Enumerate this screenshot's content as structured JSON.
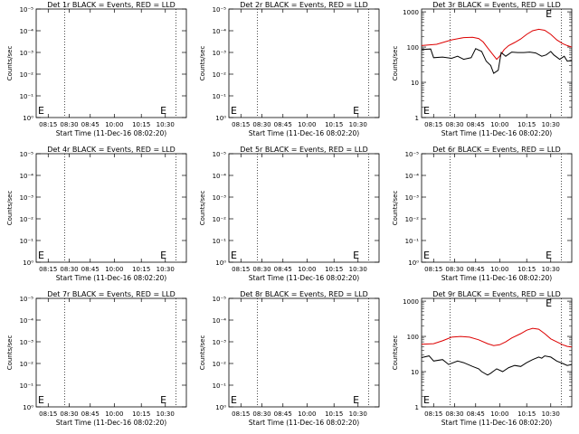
{
  "colors": {
    "events": "#000000",
    "lld": "#dd0000",
    "axis": "#000000"
  },
  "chart_data": [
    {
      "type": "line",
      "title": "Det 1r BLACK = Events, RED = LLD",
      "xlabel": "Start Time (11-Dec-16 08:02:20)",
      "ylabel": "Counts/sec",
      "xticks": [
        "08:15",
        "08:30",
        "08:45",
        "10:00",
        "10:15",
        "10:30"
      ],
      "yticks": [
        "10⁰",
        "10⁻¹",
        "10⁻²",
        "10⁻³",
        "10⁻⁴",
        "10⁻⁵"
      ],
      "grid": false,
      "markers": [
        "E"
      ],
      "series": []
    },
    {
      "type": "line",
      "title": "Det 2r BLACK = Events, RED = LLD",
      "xlabel": "Start Time (11-Dec-16 08:02:20)",
      "ylabel": "Counts/sec",
      "xticks": [
        "08:15",
        "08:30",
        "08:45",
        "10:00",
        "10:15",
        "10:30"
      ],
      "yticks": [
        "10⁰",
        "10⁻¹",
        "10⁻²",
        "10⁻³",
        "10⁻⁴",
        "10⁻⁵"
      ],
      "grid": false,
      "markers": [
        "E"
      ],
      "series": []
    },
    {
      "type": "line",
      "title": "Det 3r BLACK = Events, RED = LLD",
      "xlabel": "Start Time (11-Dec-16 08:02:20)",
      "ylabel": "Counts/sec",
      "xticks": [
        "08:15",
        "08:30",
        "08:45",
        "10:00",
        "10:15",
        "10:30"
      ],
      "yticks": [
        "1",
        "10",
        "100",
        "1000"
      ],
      "ylim": [
        1,
        1200
      ],
      "yscale": "log",
      "grid": false,
      "markers": [
        "E"
      ],
      "series": [
        {
          "color": "#dd0000",
          "points": [
            [
              0.0,
              110
            ],
            [
              0.1,
              120
            ],
            [
              0.2,
              160
            ],
            [
              0.28,
              185
            ],
            [
              0.34,
              190
            ],
            [
              0.38,
              175
            ],
            [
              0.41,
              140
            ],
            [
              0.44,
              95
            ],
            [
              0.47,
              65
            ],
            [
              0.5,
              45
            ],
            [
              0.52,
              55
            ],
            [
              0.55,
              85
            ],
            [
              0.58,
              110
            ],
            [
              0.62,
              135
            ],
            [
              0.66,
              170
            ],
            [
              0.7,
              230
            ],
            [
              0.74,
              290
            ],
            [
              0.78,
              320
            ],
            [
              0.82,
              300
            ],
            [
              0.86,
              230
            ],
            [
              0.9,
              160
            ],
            [
              0.94,
              125
            ],
            [
              0.97,
              110
            ],
            [
              1.0,
              100
            ]
          ]
        },
        {
          "color": "#000000",
          "points": [
            [
              0.0,
              85
            ],
            [
              0.06,
              88
            ],
            [
              0.08,
              50
            ],
            [
              0.14,
              52
            ],
            [
              0.2,
              48
            ],
            [
              0.24,
              55
            ],
            [
              0.28,
              45
            ],
            [
              0.33,
              50
            ],
            [
              0.36,
              90
            ],
            [
              0.4,
              75
            ],
            [
              0.43,
              40
            ],
            [
              0.46,
              30
            ],
            [
              0.48,
              18
            ],
            [
              0.51,
              22
            ],
            [
              0.53,
              70
            ],
            [
              0.56,
              55
            ],
            [
              0.6,
              72
            ],
            [
              0.64,
              70
            ],
            [
              0.68,
              70
            ],
            [
              0.72,
              72
            ],
            [
              0.76,
              68
            ],
            [
              0.8,
              55
            ],
            [
              0.83,
              60
            ],
            [
              0.86,
              75
            ],
            [
              0.88,
              60
            ],
            [
              0.92,
              45
            ],
            [
              0.95,
              55
            ],
            [
              0.97,
              40
            ],
            [
              1.0,
              42
            ]
          ]
        }
      ]
    },
    {
      "type": "line",
      "title": "Det 4r BLACK = Events, RED = LLD",
      "xlabel": "Start Time (11-Dec-16 08:02:20)",
      "ylabel": "Counts/sec",
      "xticks": [
        "08:15",
        "08:30",
        "08:45",
        "10:00",
        "10:15",
        "10:30"
      ],
      "yticks": [
        "10⁰",
        "10⁻¹",
        "10⁻²",
        "10⁻³",
        "10⁻⁴",
        "10⁻⁵"
      ],
      "grid": false,
      "markers": [
        "E"
      ],
      "series": []
    },
    {
      "type": "line",
      "title": "Det 5r BLACK = Events, RED = LLD",
      "xlabel": "Start Time (11-Dec-16 08:02:20)",
      "ylabel": "Counts/sec",
      "xticks": [
        "08:15",
        "08:30",
        "08:45",
        "10:00",
        "10:15",
        "10:30"
      ],
      "yticks": [
        "10⁰",
        "10⁻¹",
        "10⁻²",
        "10⁻³",
        "10⁻⁴",
        "10⁻⁵"
      ],
      "grid": false,
      "markers": [
        "E"
      ],
      "series": []
    },
    {
      "type": "line",
      "title": "Det 6r BLACK = Events, RED = LLD",
      "xlabel": "Start Time (11-Dec-16 08:02:20)",
      "ylabel": "Counts/sec",
      "xticks": [
        "08:15",
        "08:30",
        "08:45",
        "10:00",
        "10:15",
        "10:30"
      ],
      "yticks": [
        "10⁰",
        "10⁻¹",
        "10⁻²",
        "10⁻³",
        "10⁻⁴",
        "10⁻⁵"
      ],
      "grid": false,
      "markers": [
        "E"
      ],
      "series": []
    },
    {
      "type": "line",
      "title": "Det 7r BLACK = Events, RED = LLD",
      "xlabel": "Start Time (11-Dec-16 08:02:20)",
      "ylabel": "Counts/sec",
      "xticks": [
        "08:15",
        "08:30",
        "08:45",
        "10:00",
        "10:15",
        "10:30"
      ],
      "yticks": [
        "10⁰",
        "10⁻¹",
        "10⁻²",
        "10⁻³",
        "10⁻⁴",
        "10⁻⁵"
      ],
      "grid": false,
      "markers": [
        "E"
      ],
      "series": []
    },
    {
      "type": "line",
      "title": "Det 8r BLACK = Events, RED = LLD",
      "xlabel": "Start Time (11-Dec-16 08:02:20)",
      "ylabel": "Counts/sec",
      "xticks": [
        "08:15",
        "08:30",
        "08:45",
        "10:00",
        "10:15",
        "10:30"
      ],
      "yticks": [
        "10⁰",
        "10⁻¹",
        "10⁻²",
        "10⁻³",
        "10⁻⁴",
        "10⁻⁵"
      ],
      "grid": false,
      "markers": [
        "E"
      ],
      "series": []
    },
    {
      "type": "line",
      "title": "Det 9r BLACK = Events, RED = LLD",
      "xlabel": "Start Time (11-Dec-16 08:02:20)",
      "ylabel": "Counts/sec",
      "xticks": [
        "08:15",
        "08:30",
        "08:45",
        "10:00",
        "10:15",
        "10:30"
      ],
      "yticks": [
        "1",
        "10",
        "100",
        "1000"
      ],
      "ylim": [
        1,
        1200
      ],
      "yscale": "log",
      "grid": false,
      "markers": [
        "E"
      ],
      "series": [
        {
          "color": "#dd0000",
          "points": [
            [
              0.0,
              60
            ],
            [
              0.08,
              62
            ],
            [
              0.14,
              75
            ],
            [
              0.2,
              95
            ],
            [
              0.26,
              100
            ],
            [
              0.32,
              95
            ],
            [
              0.38,
              80
            ],
            [
              0.44,
              62
            ],
            [
              0.48,
              55
            ],
            [
              0.52,
              58
            ],
            [
              0.56,
              70
            ],
            [
              0.6,
              90
            ],
            [
              0.66,
              120
            ],
            [
              0.7,
              150
            ],
            [
              0.74,
              170
            ],
            [
              0.78,
              160
            ],
            [
              0.82,
              120
            ],
            [
              0.86,
              85
            ],
            [
              0.9,
              70
            ],
            [
              0.94,
              58
            ],
            [
              0.97,
              52
            ],
            [
              1.0,
              50
            ]
          ]
        },
        {
          "color": "#000000",
          "points": [
            [
              0.0,
              25
            ],
            [
              0.05,
              28
            ],
            [
              0.08,
              20
            ],
            [
              0.14,
              22
            ],
            [
              0.18,
              16
            ],
            [
              0.24,
              20
            ],
            [
              0.28,
              18
            ],
            [
              0.34,
              14
            ],
            [
              0.38,
              12
            ],
            [
              0.4,
              10
            ],
            [
              0.44,
              8
            ],
            [
              0.46,
              9
            ],
            [
              0.5,
              12
            ],
            [
              0.54,
              10
            ],
            [
              0.58,
              13
            ],
            [
              0.62,
              15
            ],
            [
              0.66,
              14
            ],
            [
              0.7,
              18
            ],
            [
              0.74,
              22
            ],
            [
              0.78,
              26
            ],
            [
              0.8,
              24
            ],
            [
              0.82,
              28
            ],
            [
              0.86,
              26
            ],
            [
              0.9,
              20
            ],
            [
              0.94,
              17
            ],
            [
              0.97,
              15
            ],
            [
              1.0,
              16
            ]
          ]
        }
      ]
    }
  ]
}
